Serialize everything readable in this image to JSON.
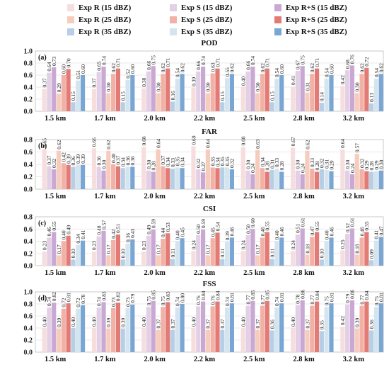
{
  "legend": [
    {
      "label": "Exp R (15 dBZ)",
      "color": "#f7dede"
    },
    {
      "label": "Exp S (15 dBZ)",
      "color": "#e3cfe6"
    },
    {
      "label": "Exp R+S (15 dBZ)",
      "color": "#c9a8d4"
    },
    {
      "label": "Exp R (25 dBZ)",
      "color": "#f6cdbd"
    },
    {
      "label": "Exp S (25 dBZ)",
      "color": "#f2b1a6"
    },
    {
      "label": "Exp R+S (25 dBZ)",
      "color": "#e27b76"
    },
    {
      "label": "Exp R (35 dBZ)",
      "color": "#b7cfe6"
    },
    {
      "label": "Exp S (35 dBZ)",
      "color": "#d4e5ef"
    },
    {
      "label": "Exp R+S (35 dBZ)",
      "color": "#7aa6d3"
    }
  ],
  "chart_data": [
    {
      "type": "bar",
      "panel": "(a)",
      "title": "POD",
      "categories": [
        "1.5 km",
        "1.7 km",
        "2.0 km",
        "2.2 km",
        "2.5 km",
        "2.8 km",
        "3.2 km"
      ],
      "ylim": [
        0,
        1.0
      ],
      "yticks": [
        "0.0",
        "0.2",
        "0.4",
        "0.6",
        "0.8",
        "1.0"
      ],
      "grid": true,
      "series": [
        {
          "name": "Exp R (15 dBZ)",
          "values": [
            0.37,
            0.37,
            0.38,
            0.39,
            0.4,
            0.41,
            0.42
          ]
        },
        {
          "name": "Exp S (15 dBZ)",
          "values": [
            0.64,
            0.65,
            0.66,
            0.66,
            0.66,
            0.67,
            0.68
          ]
        },
        {
          "name": "Exp R+S (15 dBZ)",
          "values": [
            0.73,
            0.74,
            0.75,
            0.74,
            0.74,
            0.75,
            0.76
          ]
        },
        {
          "name": "Exp R (25 dBZ)",
          "values": [
            0.29,
            0.3,
            0.3,
            0.3,
            0.3,
            0.31,
            0.3
          ]
        },
        {
          "name": "Exp S (25 dBZ)",
          "values": [
            0.6,
            0.62,
            0.62,
            0.63,
            0.62,
            0.62,
            0.62
          ]
        },
        {
          "name": "Exp R+S (25 dBZ)",
          "values": [
            0.7,
            0.71,
            0.71,
            0.71,
            0.71,
            0.71,
            0.72
          ]
        },
        {
          "name": "Exp R (35 dBZ)",
          "values": [
            0.15,
            0.15,
            0.16,
            0.15,
            0.15,
            0.14,
            0.13
          ]
        },
        {
          "name": "Exp S (35 dBZ)",
          "values": [
            0.51,
            0.52,
            0.54,
            0.55,
            0.54,
            0.54,
            0.54
          ]
        },
        {
          "name": "Exp R+S (35 dBZ)",
          "values": [
            0.6,
            0.6,
            0.62,
            0.62,
            0.6,
            0.6,
            0.62
          ]
        }
      ]
    },
    {
      "type": "bar",
      "panel": "(b)",
      "title": "FAR",
      "categories": [
        "1.5 km",
        "1.7 km",
        "2.0 km",
        "2.2 km",
        "2.5 km",
        "2.8 km",
        "3.2 km"
      ],
      "ylim": [
        0,
        0.8
      ],
      "yticks": [
        "0.0",
        "0.2",
        "0.4",
        "0.6",
        "0.8"
      ],
      "grid": true,
      "series": [
        {
          "name": "Exp R (15 dBZ)",
          "values": [
            0.65,
            0.66,
            0.68,
            0.69,
            0.68,
            0.67,
            0.64
          ]
        },
        {
          "name": "Exp S (15 dBZ)",
          "values": [
            0.37,
            0.36,
            0.3,
            0.32,
            0.3,
            0.3,
            0.3
          ]
        },
        {
          "name": "Exp R+S (15 dBZ)",
          "values": [
            0.32,
            0.3,
            0.28,
            0.27,
            0.24,
            0.24,
            0.24
          ]
        },
        {
          "name": "Exp R (25 dBZ)",
          "values": [
            0.62,
            0.62,
            0.64,
            0.64,
            0.63,
            0.62,
            0.57
          ]
        },
        {
          "name": "Exp S (25 dBZ)",
          "values": [
            0.42,
            0.4,
            0.37,
            0.35,
            0.34,
            0.33,
            0.32
          ]
        },
        {
          "name": "Exp R+S (25 dBZ)",
          "values": [
            0.39,
            0.37,
            0.34,
            0.34,
            0.28,
            0.28,
            0.29
          ]
        },
        {
          "name": "Exp R (35 dBZ)",
          "values": [
            0.36,
            0.34,
            0.33,
            0.35,
            0.31,
            0.32,
            0.28
          ]
        },
        {
          "name": "Exp S (35 dBZ)",
          "values": [
            0.39,
            0.36,
            0.35,
            0.35,
            0.33,
            0.31,
            0.29
          ]
        },
        {
          "name": "Exp R+S (35 dBZ)",
          "values": [
            0.39,
            0.36,
            0.34,
            0.32,
            0.28,
            0.29,
            0.3
          ]
        }
      ]
    },
    {
      "type": "bar",
      "panel": "(c)",
      "title": "CSI",
      "categories": [
        "1.5 km",
        "1.7 km",
        "2.0 km",
        "2.2 km",
        "2.5 km",
        "2.8 km",
        "3.2 km"
      ],
      "ylim": [
        0,
        0.8
      ],
      "yticks": [
        "0.0",
        "0.2",
        "0.4",
        "0.6",
        "0.8"
      ],
      "grid": true,
      "series": [
        {
          "name": "Exp R (15 dBZ)",
          "values": [
            0.23,
            0.23,
            0.23,
            0.24,
            0.24,
            0.24,
            0.25
          ]
        },
        {
          "name": "Exp S (15 dBZ)",
          "values": [
            0.46,
            0.48,
            0.49,
            0.5,
            0.5,
            0.51,
            0.52
          ]
        },
        {
          "name": "Exp R+S (15 dBZ)",
          "values": [
            0.55,
            0.57,
            0.59,
            0.59,
            0.6,
            0.61,
            0.61
          ]
        },
        {
          "name": "Exp R (25 dBZ)",
          "values": [
            0.17,
            0.17,
            0.17,
            0.17,
            0.17,
            0.18,
            0.18
          ]
        },
        {
          "name": "Exp S (25 dBZ)",
          "values": [
            0.4,
            0.42,
            0.44,
            0.45,
            0.46,
            0.47,
            0.46
          ]
        },
        {
          "name": "Exp R+S (25 dBZ)",
          "values": [
            0.49,
            0.51,
            0.53,
            0.54,
            0.55,
            0.55,
            0.55
          ]
        },
        {
          "name": "Exp R (35 dBZ)",
          "values": [
            0.1,
            0.1,
            0.11,
            0.11,
            0.11,
            0.1,
            0.09
          ]
        },
        {
          "name": "Exp S (35 dBZ)",
          "values": [
            0.34,
            0.36,
            0.4,
            0.39,
            0.4,
            0.4,
            0.41
          ]
        },
        {
          "name": "Exp R+S (35 dBZ)",
          "values": [
            0.41,
            0.43,
            0.45,
            0.46,
            0.46,
            0.46,
            0.47
          ]
        }
      ]
    },
    {
      "type": "bar",
      "panel": "(d)",
      "title": "FSS",
      "categories": [
        "1.5 km",
        "1.7 km",
        "2.0 km",
        "2.2 km",
        "2.5 km",
        "2.8 km",
        "3.2 km"
      ],
      "ylim": [
        0,
        1.0
      ],
      "yticks": [
        "0.0",
        "0.2",
        "0.4",
        "0.6",
        "0.8",
        "1.0"
      ],
      "grid": true,
      "series": [
        {
          "name": "Exp R (15 dBZ)",
          "values": [
            0.4,
            0.4,
            0.4,
            0.4,
            0.4,
            0.4,
            0.42
          ]
        },
        {
          "name": "Exp S (15 dBZ)",
          "values": [
            0.74,
            0.74,
            0.75,
            0.76,
            0.77,
            0.78,
            0.79
          ]
        },
        {
          "name": "Exp R+S (15 dBZ)",
          "values": [
            0.82,
            0.83,
            0.85,
            0.84,
            0.85,
            0.86,
            0.86
          ]
        },
        {
          "name": "Exp R (25 dBZ)",
          "values": [
            0.39,
            0.39,
            0.37,
            0.37,
            0.37,
            0.37,
            0.39
          ]
        },
        {
          "name": "Exp S (25 dBZ)",
          "values": [
            0.72,
            0.73,
            0.75,
            0.76,
            0.77,
            0.77,
            0.77
          ]
        },
        {
          "name": "Exp R+S (25 dBZ)",
          "values": [
            0.81,
            0.82,
            0.83,
            0.84,
            0.85,
            0.84,
            0.84
          ]
        },
        {
          "name": "Exp R (35 dBZ)",
          "values": [
            0.4,
            0.39,
            0.37,
            0.37,
            0.36,
            0.35,
            0.36
          ]
        },
        {
          "name": "Exp S (35 dBZ)",
          "values": [
            0.72,
            0.73,
            0.74,
            0.74,
            0.74,
            0.75,
            0.75
          ]
        },
        {
          "name": "Exp R+S (35 dBZ)",
          "values": [
            0.78,
            0.79,
            0.8,
            0.81,
            0.81,
            0.81,
            0.81
          ]
        }
      ]
    }
  ]
}
